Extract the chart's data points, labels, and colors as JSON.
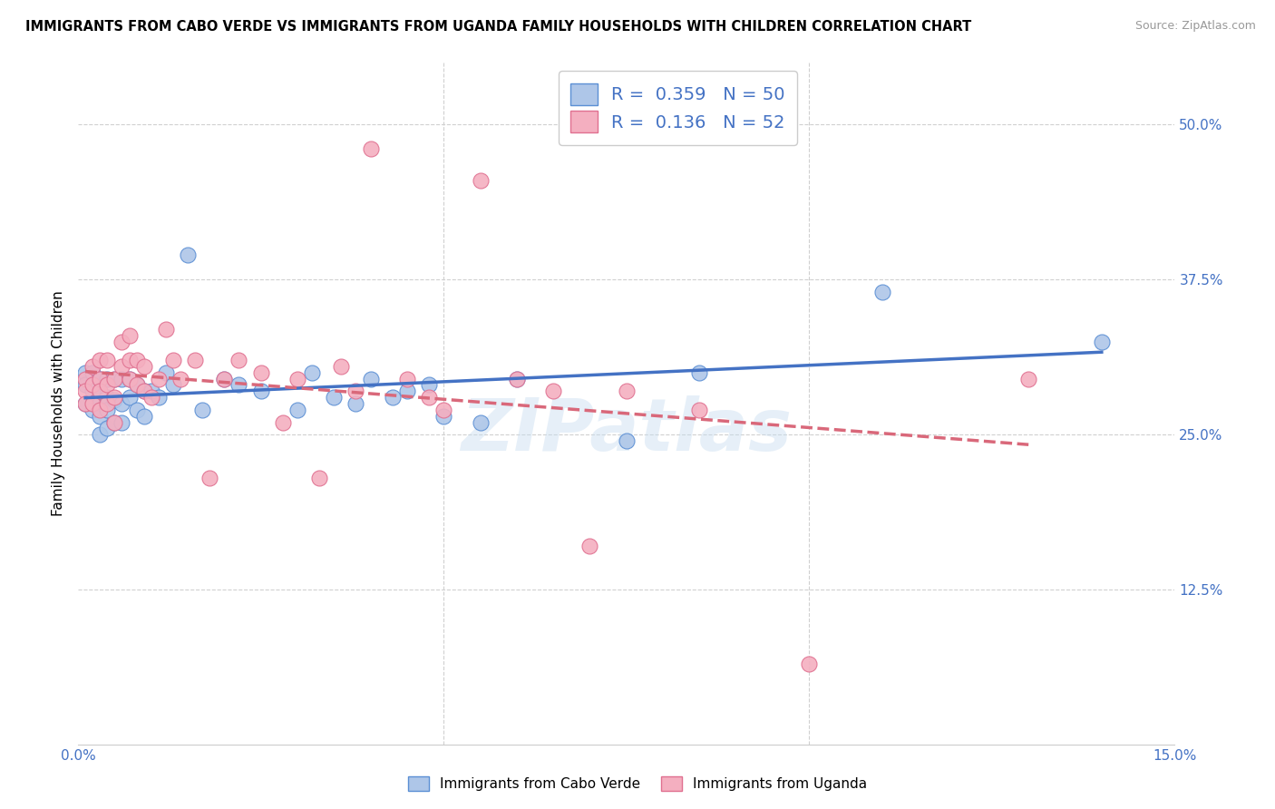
{
  "title": "IMMIGRANTS FROM CABO VERDE VS IMMIGRANTS FROM UGANDA FAMILY HOUSEHOLDS WITH CHILDREN CORRELATION CHART",
  "source": "Source: ZipAtlas.com",
  "ylabel": "Family Households with Children",
  "xlim": [
    0.0,
    0.15
  ],
  "ylim": [
    0.0,
    0.55
  ],
  "xticks": [
    0.0,
    0.05,
    0.1,
    0.15
  ],
  "xticklabels": [
    "0.0%",
    "",
    "",
    "15.0%"
  ],
  "ytick_labels_right": [
    "50.0%",
    "37.5%",
    "25.0%",
    "12.5%"
  ],
  "ytick_positions_right": [
    0.5,
    0.375,
    0.25,
    0.125
  ],
  "cabo_verde_color": "#aec6e8",
  "uganda_color": "#f4afc0",
  "cabo_verde_edge_color": "#5b8fd4",
  "uganda_edge_color": "#e07090",
  "cabo_verde_line_color": "#4472c4",
  "uganda_line_color": "#d9687a",
  "cabo_verde_R": 0.359,
  "cabo_verde_N": 50,
  "uganda_R": 0.136,
  "uganda_N": 52,
  "legend_label_1": "Immigrants from Cabo Verde",
  "legend_label_2": "Immigrants from Uganda",
  "watermark": "ZIPatlas",
  "cabo_verde_x": [
    0.001,
    0.001,
    0.001,
    0.002,
    0.002,
    0.002,
    0.003,
    0.003,
    0.003,
    0.003,
    0.004,
    0.004,
    0.004,
    0.004,
    0.005,
    0.005,
    0.005,
    0.006,
    0.006,
    0.006,
    0.007,
    0.007,
    0.008,
    0.008,
    0.009,
    0.009,
    0.01,
    0.011,
    0.012,
    0.013,
    0.015,
    0.017,
    0.02,
    0.022,
    0.025,
    0.03,
    0.032,
    0.035,
    0.038,
    0.04,
    0.043,
    0.045,
    0.048,
    0.05,
    0.055,
    0.06,
    0.075,
    0.085,
    0.11,
    0.14
  ],
  "cabo_verde_y": [
    0.3,
    0.29,
    0.275,
    0.3,
    0.285,
    0.27,
    0.295,
    0.275,
    0.265,
    0.25,
    0.295,
    0.28,
    0.27,
    0.255,
    0.295,
    0.278,
    0.26,
    0.295,
    0.275,
    0.26,
    0.295,
    0.28,
    0.29,
    0.27,
    0.285,
    0.265,
    0.285,
    0.28,
    0.3,
    0.29,
    0.395,
    0.27,
    0.295,
    0.29,
    0.285,
    0.27,
    0.3,
    0.28,
    0.275,
    0.295,
    0.28,
    0.285,
    0.29,
    0.265,
    0.26,
    0.295,
    0.245,
    0.3,
    0.365,
    0.325
  ],
  "uganda_x": [
    0.001,
    0.001,
    0.001,
    0.002,
    0.002,
    0.002,
    0.003,
    0.003,
    0.003,
    0.003,
    0.004,
    0.004,
    0.004,
    0.005,
    0.005,
    0.005,
    0.006,
    0.006,
    0.007,
    0.007,
    0.007,
    0.008,
    0.008,
    0.009,
    0.009,
    0.01,
    0.011,
    0.012,
    0.013,
    0.014,
    0.016,
    0.018,
    0.02,
    0.022,
    0.025,
    0.028,
    0.03,
    0.033,
    0.036,
    0.038,
    0.04,
    0.045,
    0.048,
    0.05,
    0.055,
    0.06,
    0.065,
    0.07,
    0.075,
    0.085,
    0.1,
    0.13
  ],
  "uganda_y": [
    0.295,
    0.285,
    0.275,
    0.305,
    0.29,
    0.275,
    0.31,
    0.295,
    0.285,
    0.27,
    0.31,
    0.29,
    0.275,
    0.295,
    0.28,
    0.26,
    0.325,
    0.305,
    0.33,
    0.31,
    0.295,
    0.31,
    0.29,
    0.305,
    0.285,
    0.28,
    0.295,
    0.335,
    0.31,
    0.295,
    0.31,
    0.215,
    0.295,
    0.31,
    0.3,
    0.26,
    0.295,
    0.215,
    0.305,
    0.285,
    0.48,
    0.295,
    0.28,
    0.27,
    0.455,
    0.295,
    0.285,
    0.16,
    0.285,
    0.27,
    0.065,
    0.295
  ]
}
